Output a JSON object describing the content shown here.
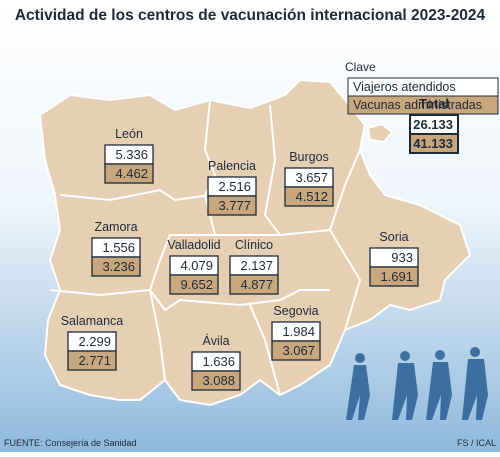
{
  "header": {
    "title": "Actividad de los centros de vacunación internacional 2023-2024"
  },
  "legend": {
    "title": "Clave",
    "items": [
      "Viajeros atendidos",
      "Vacunas administradas"
    ]
  },
  "total": {
    "label": "Total",
    "viajeros": "26.133",
    "vacunas": "41.133"
  },
  "regions": [
    {
      "name": "León",
      "viajeros": "5.336",
      "vacunas": "4.462"
    },
    {
      "name": "Palencia",
      "viajeros": "2.516",
      "vacunas": "3.777"
    },
    {
      "name": "Burgos",
      "viajeros": "3.657",
      "vacunas": "4.512"
    },
    {
      "name": "Zamora",
      "viajeros": "1.556",
      "vacunas": "3.236"
    },
    {
      "name": "Valladolid",
      "viajeros": "4.079",
      "vacunas": "9.652"
    },
    {
      "name": "Clínico",
      "viajeros": "2.137",
      "vacunas": "4.877"
    },
    {
      "name": "Soria",
      "viajeros": "933",
      "vacunas": "1.691"
    },
    {
      "name": "Salamanca",
      "viajeros": "2.299",
      "vacunas": "2.771"
    },
    {
      "name": "Ávila",
      "viajeros": "1.636",
      "vacunas": "3.088"
    },
    {
      "name": "Segovia",
      "viajeros": "1.984",
      "vacunas": "3.067"
    }
  ],
  "footer": {
    "source": "FUENTE: Consejería de Sanidad",
    "credit": "FS / ICAL"
  }
}
